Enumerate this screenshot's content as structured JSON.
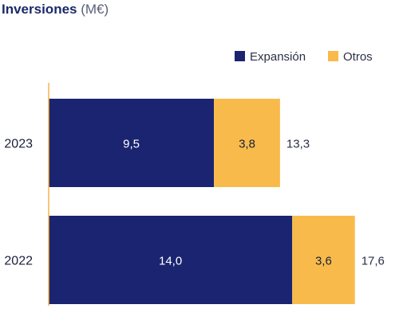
{
  "colors": {
    "expansion": "#1b2470",
    "otros": "#f8bb4b",
    "axis": "#f6b648",
    "label_dark": "#1a1f3a",
    "label_light": "#ffffff",
    "title": "#1b2a6b",
    "unit": "#5a5f78",
    "total": "#2c3047"
  },
  "chart_data": {
    "type": "bar",
    "orientation": "horizontal",
    "stacked": true,
    "title": "Inversiones",
    "unit": "(M€)",
    "categories": [
      "2023",
      "2022"
    ],
    "series": [
      {
        "name": "Expansión",
        "values": [
          9.5,
          14.0
        ],
        "labels": [
          "9,5",
          "14,0"
        ]
      },
      {
        "name": "Otros",
        "values": [
          3.8,
          3.6
        ],
        "labels": [
          "3,8",
          "3,6"
        ]
      }
    ],
    "totals": [
      13.3,
      17.6
    ],
    "total_labels": [
      "13,3",
      "17,6"
    ],
    "legend": "top-right",
    "grid": false
  }
}
